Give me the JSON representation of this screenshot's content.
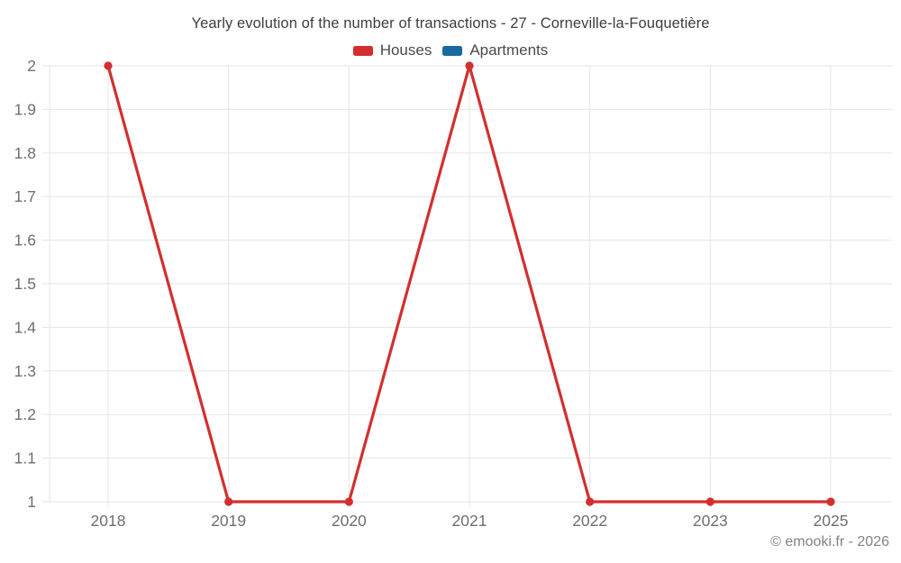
{
  "page": {
    "footer": "© emooki.fr - 2026"
  },
  "chart_data": {
    "type": "line",
    "title": "Yearly evolution of the number of transactions - 27 - Corneville-la-Fouquetière",
    "categories": [
      "2018",
      "2019",
      "2020",
      "2021",
      "2022",
      "2023",
      "2025"
    ],
    "series": [
      {
        "name": "Houses",
        "color": "#d32f2f",
        "values": [
          2,
          1,
          1,
          2,
          1,
          1,
          1
        ]
      },
      {
        "name": "Apartments",
        "color": "#17699f",
        "values": []
      }
    ],
    "ylim": [
      1,
      2
    ],
    "ytick_labels": [
      "2",
      "1.9",
      "1.8",
      "1.7",
      "1.6",
      "1.5",
      "1.4",
      "1.3",
      "1.2",
      "1.1",
      "1"
    ],
    "xlabel": "",
    "ylabel": "",
    "grid": true,
    "legend_position": "top",
    "marker": "circle",
    "colors": {
      "grid": "#e9e9e9",
      "axis_label": "#6f6f6f",
      "title": "#3d3d3d",
      "footer": "#828282"
    }
  }
}
